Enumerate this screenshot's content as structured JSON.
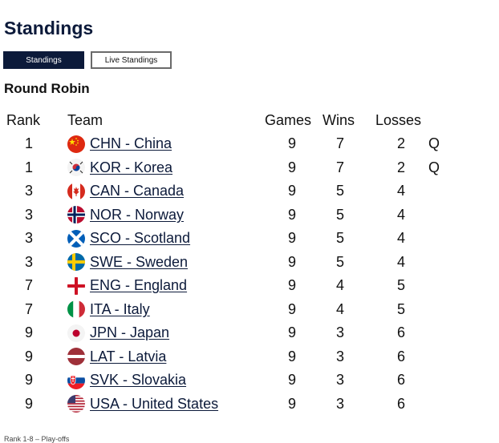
{
  "title": "Standings",
  "tabs": [
    {
      "label": "Standings",
      "active": true
    },
    {
      "label": "Live Standings",
      "active": false
    }
  ],
  "section_title": "Round Robin",
  "columns": {
    "rank": "Rank",
    "team": "Team",
    "games": "Games",
    "wins": "Wins",
    "losses": "Losses"
  },
  "rows": [
    {
      "rank": "1",
      "code": "CHN",
      "team": "CHN - China",
      "flag": "china-flag-icon",
      "games": "9",
      "wins": "7",
      "losses": "2",
      "q": "Q"
    },
    {
      "rank": "1",
      "code": "KOR",
      "team": "KOR - Korea",
      "flag": "korea-flag-icon",
      "games": "9",
      "wins": "7",
      "losses": "2",
      "q": "Q"
    },
    {
      "rank": "3",
      "code": "CAN",
      "team": "CAN - Canada",
      "flag": "canada-flag-icon",
      "games": "9",
      "wins": "5",
      "losses": "4",
      "q": ""
    },
    {
      "rank": "3",
      "code": "NOR",
      "team": "NOR - Norway",
      "flag": "norway-flag-icon",
      "games": "9",
      "wins": "5",
      "losses": "4",
      "q": ""
    },
    {
      "rank": "3",
      "code": "SCO",
      "team": "SCO - Scotland",
      "flag": "scotland-flag-icon",
      "games": "9",
      "wins": "5",
      "losses": "4",
      "q": ""
    },
    {
      "rank": "3",
      "code": "SWE",
      "team": "SWE - Sweden",
      "flag": "sweden-flag-icon",
      "games": "9",
      "wins": "5",
      "losses": "4",
      "q": ""
    },
    {
      "rank": "7",
      "code": "ENG",
      "team": "ENG - England",
      "flag": "england-flag-icon",
      "games": "9",
      "wins": "4",
      "losses": "5",
      "q": ""
    },
    {
      "rank": "7",
      "code": "ITA",
      "team": "ITA - Italy",
      "flag": "italy-flag-icon",
      "games": "9",
      "wins": "4",
      "losses": "5",
      "q": ""
    },
    {
      "rank": "9",
      "code": "JPN",
      "team": "JPN - Japan",
      "flag": "japan-flag-icon",
      "games": "9",
      "wins": "3",
      "losses": "6",
      "q": ""
    },
    {
      "rank": "9",
      "code": "LAT",
      "team": "LAT - Latvia",
      "flag": "latvia-flag-icon",
      "games": "9",
      "wins": "3",
      "losses": "6",
      "q": ""
    },
    {
      "rank": "9",
      "code": "SVK",
      "team": "SVK - Slovakia",
      "flag": "slovakia-flag-icon",
      "games": "9",
      "wins": "3",
      "losses": "6",
      "q": ""
    },
    {
      "rank": "9",
      "code": "USA",
      "team": "USA - United States",
      "flag": "usa-flag-icon",
      "games": "9",
      "wins": "3",
      "losses": "6",
      "q": ""
    }
  ],
  "footer_note": "Rank 1-8 – Play-offs",
  "colors": {
    "primary": "#0c1a3a",
    "tab_border": "#6a6a6a"
  }
}
